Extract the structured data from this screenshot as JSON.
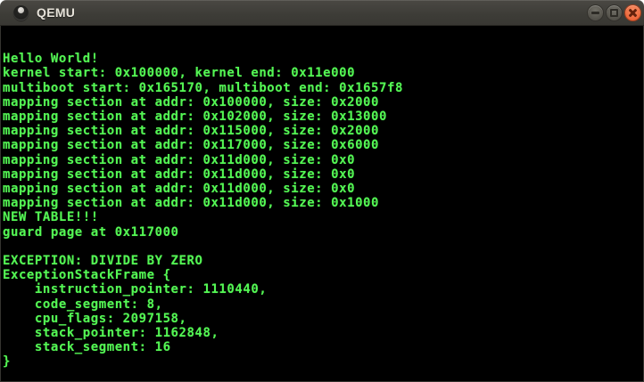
{
  "window": {
    "title": "QEMU",
    "icons": {
      "app_icon": "qemu-window-icon (dark circle with light dot)",
      "minimize": "horizontal-bar",
      "maximize": "square-outline",
      "close": "cross"
    },
    "colors": {
      "titlebar_background": "#3e3d38",
      "titlebar_text": "#e7e3da",
      "close_button": "#ea6438",
      "window_button_gray": "#53514a"
    }
  },
  "console": {
    "colors": {
      "background": "#000000",
      "text": "#54f754"
    },
    "lines": [
      "",
      "Hello World!",
      "kernel start: 0x100000, kernel end: 0x11e000",
      "multiboot start: 0x165170, multiboot end: 0x1657f8",
      "mapping section at addr: 0x100000, size: 0x2000",
      "mapping section at addr: 0x102000, size: 0x13000",
      "mapping section at addr: 0x115000, size: 0x2000",
      "mapping section at addr: 0x117000, size: 0x6000",
      "mapping section at addr: 0x11d000, size: 0x0",
      "mapping section at addr: 0x11d000, size: 0x0",
      "mapping section at addr: 0x11d000, size: 0x0",
      "mapping section at addr: 0x11d000, size: 0x1000",
      "NEW TABLE!!!",
      "guard page at 0x117000",
      "",
      "EXCEPTION: DIVIDE BY ZERO",
      "ExceptionStackFrame {",
      "    instruction_pointer: 1110440,",
      "    code_segment: 8,",
      "    cpu_flags: 2097158,",
      "    stack_pointer: 1162848,",
      "    stack_segment: 16",
      "}"
    ]
  }
}
